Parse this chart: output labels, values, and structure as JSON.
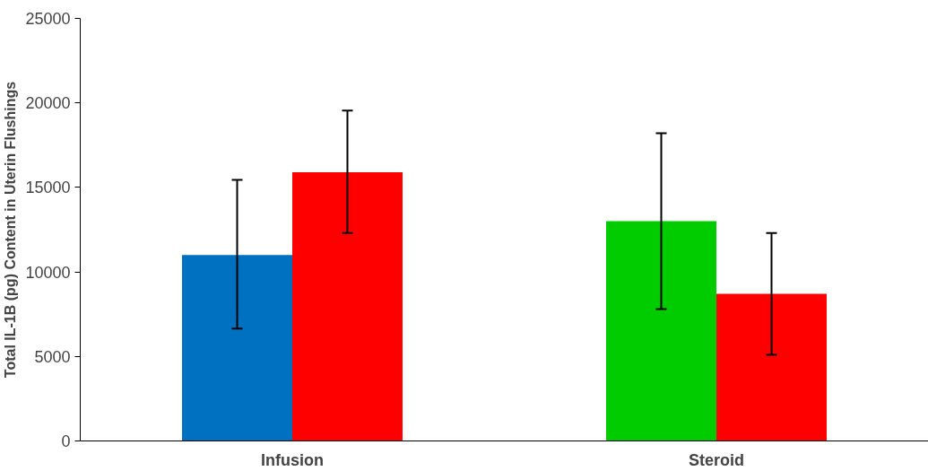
{
  "chart_data": {
    "type": "bar",
    "ylabel": "Total IL-1B (pg) Content in Uterin Flushings",
    "categories": [
      "Infusion",
      "Steroid"
    ],
    "series": [
      {
        "colors": [
          "#0070c0",
          "#00cc00"
        ],
        "values": [
          11000,
          13000
        ],
        "errors": [
          [
            6650,
            15450
          ],
          [
            7800,
            18200
          ]
        ]
      },
      {
        "color": "#ff0000",
        "values": [
          15900,
          8700
        ],
        "errors": [
          [
            12300,
            19550
          ],
          [
            5100,
            12300
          ]
        ]
      }
    ],
    "ylim": [
      0,
      25000
    ],
    "yticks": [
      0,
      5000,
      10000,
      15000,
      20000,
      25000
    ],
    "grid": false
  }
}
